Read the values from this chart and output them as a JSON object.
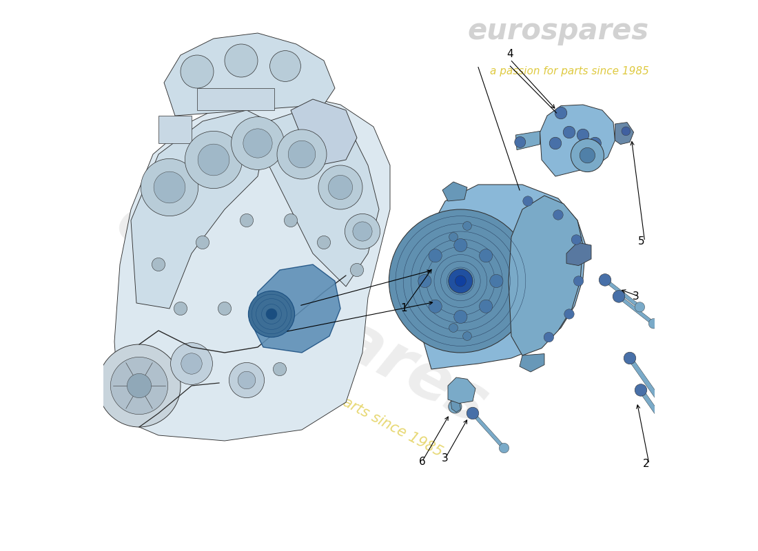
{
  "bg_color": "#ffffff",
  "watermark_text": "eurospares",
  "watermark_subtext": "a passion for parts since 1985",
  "watermark_color": "#c8c8c8",
  "watermark_alpha": 0.32,
  "watermark_yellow_color": "#d4b800",
  "watermark_yellow_alpha": 0.55,
  "arrow_color": "#000000",
  "label_fontsize": 11,
  "label_color": "#000000",
  "outline_color": "#303030",
  "engine_fill": "#dce8f0",
  "comp_fill": "#8ab8d8",
  "comp_fill_dark": "#6090b0",
  "bracket_fill": "#8ab8d8",
  "bolt_fill": "#7aaac8",
  "bolt_outline": "#303030",
  "eurospares_color": "#bbbbbb",
  "eurospares_alpha": 0.65,
  "logo_fontsize": 30,
  "sub_fontsize": 11
}
